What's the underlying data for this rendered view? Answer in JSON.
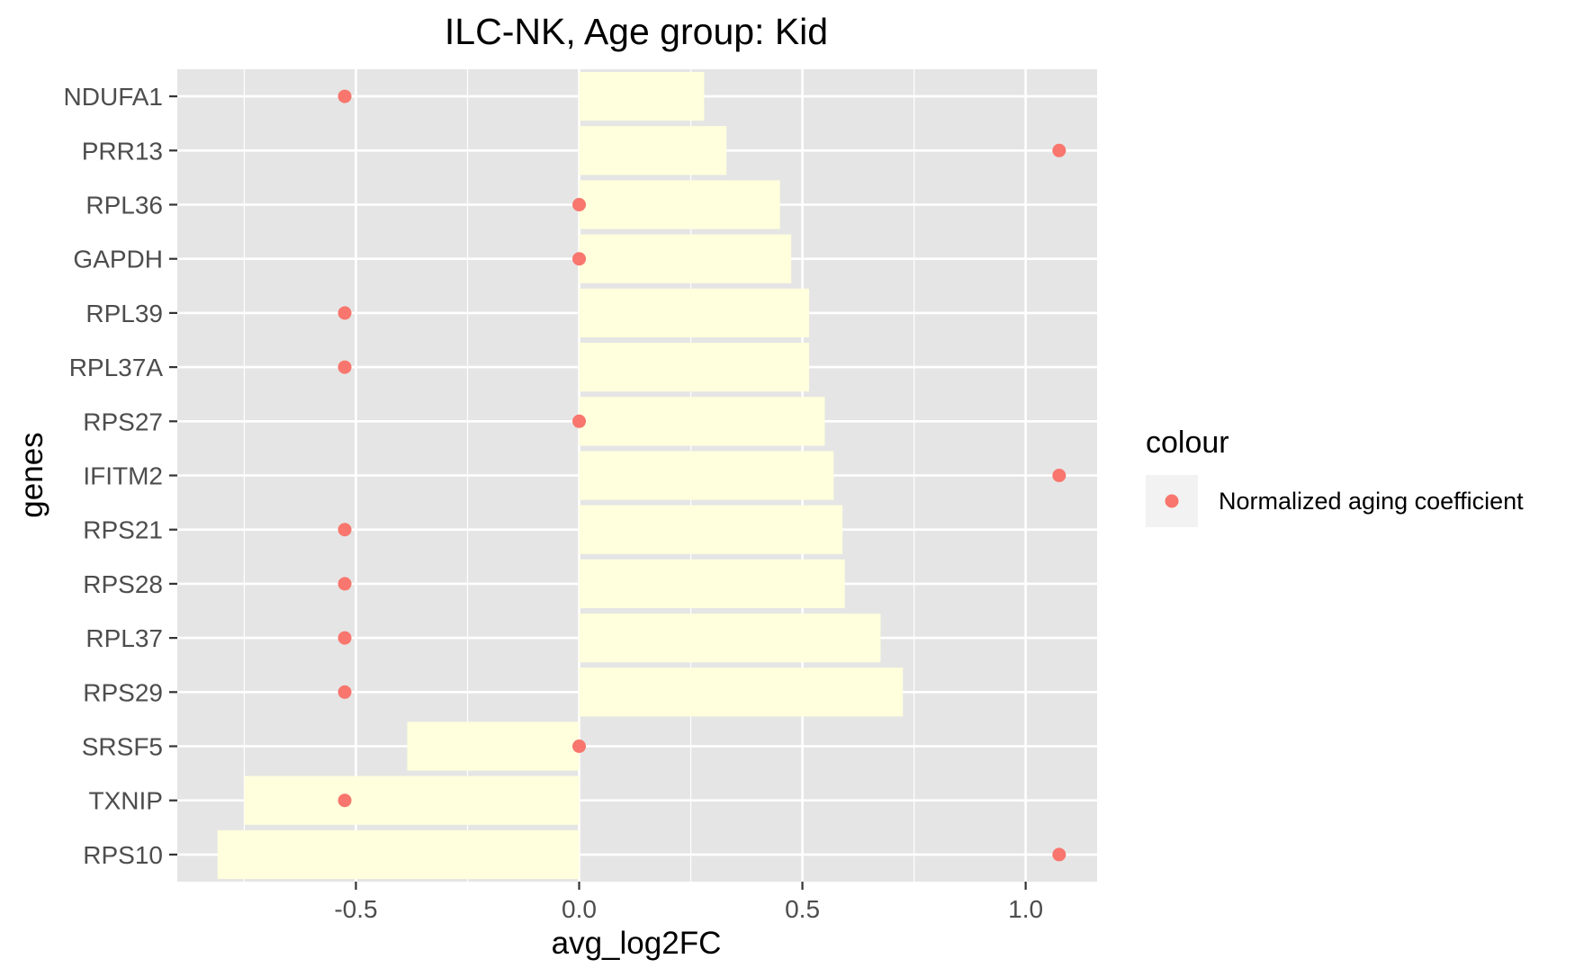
{
  "chart_data": {
    "type": "bar",
    "title": "ILC-NK, Age group: Kid",
    "xlabel": "avg_log2FC",
    "ylabel": "genes",
    "xlim": [
      -0.9,
      1.16
    ],
    "x_ticks": [
      -0.5,
      0.0,
      0.5,
      1.0
    ],
    "x_tick_labels": [
      "-0.5",
      "0.0",
      "0.5",
      "1.0"
    ],
    "grid": true,
    "orientation": "horizontal",
    "categories": [
      "NDUFA1",
      "PRR13",
      "RPL36",
      "GAPDH",
      "RPL39",
      "RPL37A",
      "RPS27",
      "IFITM2",
      "RPS21",
      "RPS28",
      "RPL37",
      "RPS29",
      "SRSF5",
      "TXNIP",
      "RPS10"
    ],
    "series": [
      {
        "kind": "bar",
        "color": "#FFFFDD",
        "values": [
          0.28,
          0.33,
          0.45,
          0.475,
          0.515,
          0.515,
          0.55,
          0.57,
          0.59,
          0.595,
          0.675,
          0.725,
          -0.385,
          -0.75,
          -0.81
        ]
      },
      {
        "kind": "point",
        "name": "Normalized aging coefficient",
        "color": "#F8766D",
        "values": [
          -0.525,
          1.075,
          0.0,
          0.0,
          -0.525,
          -0.525,
          0.0,
          1.075,
          -0.525,
          -0.525,
          -0.525,
          -0.525,
          0.0,
          -0.525,
          1.075
        ]
      }
    ],
    "legend": {
      "title": "colour",
      "position": "right",
      "entries": [
        "Normalized aging coefficient"
      ]
    },
    "panel_background": "#E5E5E5",
    "grid_color": "#FFFFFF"
  }
}
